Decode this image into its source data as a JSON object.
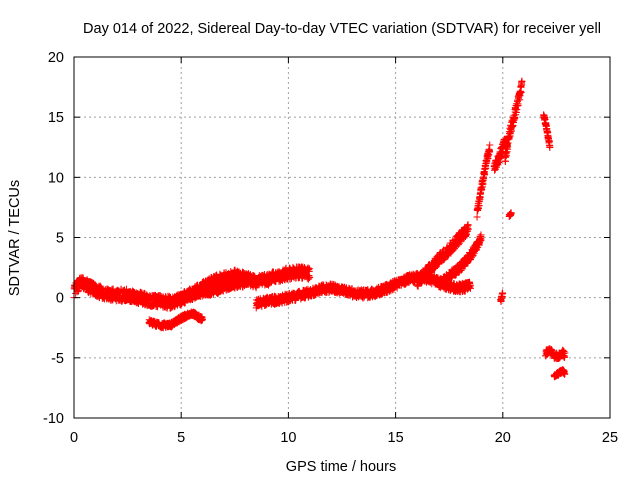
{
  "chart_data": {
    "type": "scatter",
    "title": "Day 014 of 2022, Sidereal Day-to-day VTEC variation (SDTVAR) for receiver yell",
    "xlabel": "GPS time / hours",
    "ylabel": "SDTVAR / TECUs",
    "xlim": [
      0,
      25
    ],
    "ylim": [
      -10,
      20
    ],
    "xticks": [
      0,
      5,
      10,
      15,
      20,
      25
    ],
    "yticks": [
      -10,
      -5,
      0,
      5,
      10,
      15,
      20
    ],
    "grid": true,
    "marker": "+",
    "color": "#ff0000",
    "segments": [
      {
        "x": [
          0.0,
          0.3,
          0.6,
          1.0,
          1.5,
          2.0,
          2.5,
          3.0,
          3.5,
          4.0,
          4.5,
          5.0,
          5.5,
          6.0,
          6.5,
          7.0,
          7.5,
          8.0,
          8.5,
          9.0,
          9.5,
          10.0,
          10.5,
          11.0
        ],
        "y": [
          0.5,
          1.3,
          1.0,
          0.6,
          0.3,
          0.2,
          0.2,
          0.0,
          -0.2,
          -0.3,
          -0.4,
          -0.1,
          0.3,
          0.8,
          1.3,
          1.6,
          1.8,
          1.6,
          1.3,
          1.5,
          1.8,
          2.0,
          2.1,
          2.0
        ],
        "spread": 1.0
      },
      {
        "x": [
          3.5,
          4.0,
          4.5,
          5.0,
          5.5,
          6.0
        ],
        "y": [
          -2.0,
          -2.3,
          -2.3,
          -1.7,
          -1.3,
          -1.8
        ],
        "spread": 0.4
      },
      {
        "x": [
          5.0,
          5.5,
          6.0,
          6.5,
          7.0,
          7.5,
          8.0
        ],
        "y": [
          0.0,
          0.3,
          0.5,
          0.6,
          0.9,
          1.2,
          1.3
        ],
        "spread": 0.8
      },
      {
        "x": [
          8.5,
          9.0,
          9.5,
          10.0,
          10.5,
          11.0,
          11.5,
          12.0,
          12.5,
          13.0,
          13.5,
          14.0,
          14.5,
          15.0,
          15.5,
          16.0,
          16.5,
          17.0,
          17.5,
          18.0,
          18.5
        ],
        "y": [
          -0.5,
          -0.3,
          -0.2,
          0.0,
          0.2,
          0.4,
          0.7,
          0.8,
          0.6,
          0.4,
          0.3,
          0.4,
          0.7,
          1.1,
          1.5,
          1.7,
          1.6,
          1.3,
          0.9,
          0.8,
          1.0
        ],
        "spread": 0.7
      },
      {
        "x": [
          16.0,
          16.5,
          17.0,
          17.5,
          18.0,
          18.4
        ],
        "y": [
          1.3,
          2.2,
          3.2,
          4.0,
          5.0,
          5.8
        ],
        "spread": 0.9
      },
      {
        "x": [
          17.0,
          17.5,
          18.0,
          18.5,
          19.0
        ],
        "y": [
          1.0,
          1.8,
          2.5,
          3.5,
          5.0
        ],
        "spread": 0.7
      },
      {
        "x": [
          18.8,
          18.9,
          19.0,
          19.1,
          19.2,
          19.3,
          19.4
        ],
        "y": [
          7.0,
          8.0,
          9.0,
          10.0,
          11.0,
          11.8,
          12.5
        ],
        "spread": 0.6
      },
      {
        "x": [
          19.6,
          19.8,
          20.0,
          20.1,
          20.2
        ],
        "y": [
          10.8,
          11.5,
          12.5,
          13.0,
          12.5
        ],
        "spread": 0.7
      },
      {
        "x": [
          20.1,
          20.2,
          20.3,
          20.4,
          20.5,
          20.6,
          20.7,
          20.8,
          20.9
        ],
        "y": [
          11.5,
          12.5,
          13.5,
          14.2,
          14.8,
          15.5,
          16.2,
          16.8,
          17.8
        ],
        "spread": 0.8
      },
      {
        "x": [
          19.9,
          20.0
        ],
        "y": [
          -0.3,
          0.4
        ],
        "spread": 0.3
      },
      {
        "x": [
          20.3,
          20.4
        ],
        "y": [
          6.8,
          7.0
        ],
        "spread": 0.2
      },
      {
        "x": [
          21.9,
          22.0,
          22.1,
          22.2
        ],
        "y": [
          15.2,
          14.5,
          13.5,
          12.6
        ],
        "spread": 0.4
      },
      {
        "x": [
          22.0,
          22.2,
          22.4,
          22.6,
          22.8,
          22.9
        ],
        "y": [
          -4.6,
          -4.4,
          -4.8,
          -4.9,
          -4.6,
          -4.8
        ],
        "spread": 0.5
      },
      {
        "x": [
          22.4,
          22.6,
          22.8,
          22.9
        ],
        "y": [
          -6.5,
          -6.3,
          -6.1,
          -6.3
        ],
        "spread": 0.3
      }
    ]
  }
}
